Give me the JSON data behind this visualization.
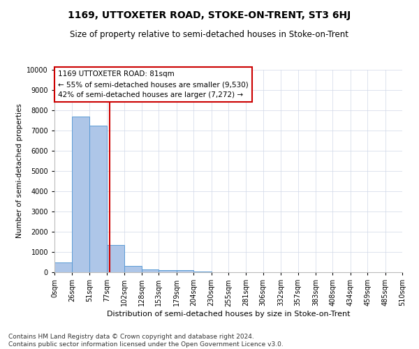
{
  "title": "1169, UTTOXETER ROAD, STOKE-ON-TRENT, ST3 6HJ",
  "subtitle": "Size of property relative to semi-detached houses in Stoke-on-Trent",
  "xlabel": "Distribution of semi-detached houses by size in Stoke-on-Trent",
  "ylabel": "Number of semi-detached properties",
  "footnote": "Contains HM Land Registry data © Crown copyright and database right 2024.\nContains public sector information licensed under the Open Government Licence v3.0.",
  "bin_edges": [
    0,
    26,
    51,
    77,
    102,
    128,
    153,
    179,
    204,
    230,
    255,
    281,
    306,
    332,
    357,
    383,
    408,
    434,
    459,
    485,
    510
  ],
  "bin_counts": [
    500,
    7700,
    7250,
    1350,
    300,
    150,
    100,
    100,
    50,
    10,
    5,
    2,
    1,
    1,
    0,
    0,
    0,
    0,
    0,
    0
  ],
  "bar_color": "#aec6e8",
  "bar_edgecolor": "#5b9bd5",
  "property_size": 81,
  "annotation_text": "1169 UTTOXETER ROAD: 81sqm\n← 55% of semi-detached houses are smaller (9,530)\n42% of semi-detached houses are larger (7,272) →",
  "annotation_box_color": "#cc0000",
  "vline_color": "#cc0000",
  "ylim": [
    0,
    10000
  ],
  "yticks": [
    0,
    1000,
    2000,
    3000,
    4000,
    5000,
    6000,
    7000,
    8000,
    9000,
    10000
  ],
  "background_color": "#ffffff",
  "grid_color": "#d0d8e8",
  "title_fontsize": 10,
  "subtitle_fontsize": 8.5,
  "xlabel_fontsize": 8,
  "ylabel_fontsize": 7.5,
  "tick_fontsize": 7,
  "annotation_fontsize": 7.5,
  "footnote_fontsize": 6.5
}
